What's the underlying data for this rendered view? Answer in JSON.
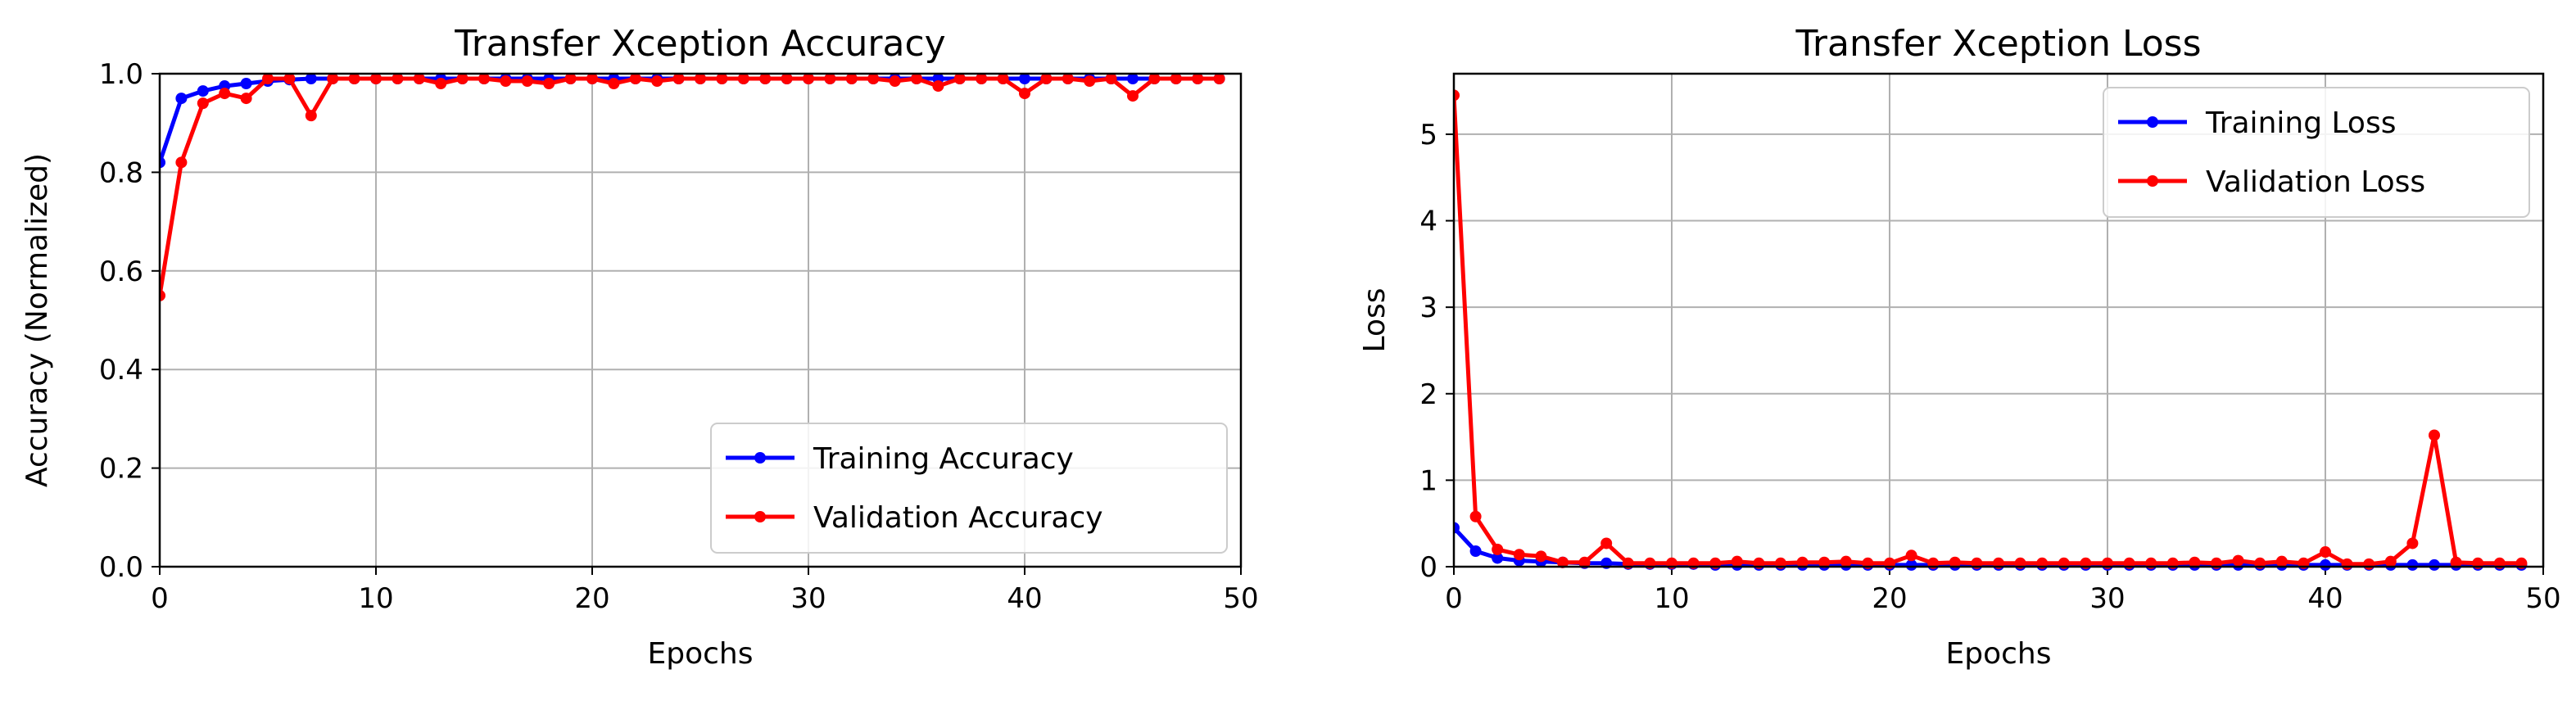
{
  "chart_data": [
    {
      "type": "line",
      "title": "Transfer Xception Accuracy",
      "xlabel": "Epochs",
      "ylabel": "Accuracy (Normalized)",
      "xlim": [
        0,
        50
      ],
      "ylim": [
        0,
        1.0
      ],
      "xticks": [
        "0",
        "10",
        "20",
        "30",
        "40",
        "50"
      ],
      "yticks": [
        "0.0",
        "0.2",
        "0.4",
        "0.6",
        "0.8",
        "1.0"
      ],
      "grid": true,
      "legend_position": "lower-right",
      "x": [
        0,
        1,
        2,
        3,
        4,
        5,
        6,
        7,
        8,
        9,
        10,
        11,
        12,
        13,
        14,
        15,
        16,
        17,
        18,
        19,
        20,
        21,
        22,
        23,
        24,
        25,
        26,
        27,
        28,
        29,
        30,
        31,
        32,
        33,
        34,
        35,
        36,
        37,
        38,
        39,
        40,
        41,
        42,
        43,
        44,
        45,
        46,
        47,
        48,
        49
      ],
      "series": [
        {
          "name": "Training Accuracy",
          "color": "#0000ff",
          "values": [
            0.82,
            0.95,
            0.965,
            0.975,
            0.98,
            0.985,
            0.988,
            0.99,
            0.99,
            0.99,
            0.99,
            0.99,
            0.99,
            0.99,
            0.99,
            0.99,
            0.99,
            0.99,
            0.99,
            0.99,
            0.99,
            0.99,
            0.99,
            0.99,
            0.99,
            0.99,
            0.99,
            0.99,
            0.99,
            0.99,
            0.99,
            0.99,
            0.99,
            0.99,
            0.99,
            0.99,
            0.99,
            0.99,
            0.99,
            0.99,
            0.99,
            0.99,
            0.99,
            0.99,
            0.99,
            0.99,
            0.99,
            0.99,
            0.99,
            0.99
          ]
        },
        {
          "name": "Validation Accuracy",
          "color": "#ff0000",
          "values": [
            0.55,
            0.82,
            0.94,
            0.96,
            0.95,
            0.99,
            0.99,
            0.915,
            0.99,
            0.99,
            0.99,
            0.99,
            0.99,
            0.98,
            0.99,
            0.99,
            0.985,
            0.985,
            0.98,
            0.99,
            0.99,
            0.98,
            0.99,
            0.985,
            0.99,
            0.99,
            0.99,
            0.99,
            0.99,
            0.99,
            0.99,
            0.99,
            0.99,
            0.99,
            0.985,
            0.99,
            0.975,
            0.99,
            0.99,
            0.99,
            0.96,
            0.99,
            0.99,
            0.985,
            0.99,
            0.955,
            0.99,
            0.99,
            0.99,
            0.99
          ]
        }
      ]
    },
    {
      "type": "line",
      "title": "Transfer Xception Loss",
      "xlabel": "Epochs",
      "ylabel": "Loss",
      "xlim": [
        0,
        50
      ],
      "ylim": [
        0,
        5.7
      ],
      "xticks": [
        "0",
        "10",
        "20",
        "30",
        "40",
        "50"
      ],
      "yticks": [
        "0",
        "1",
        "2",
        "3",
        "4",
        "5"
      ],
      "grid": true,
      "legend_position": "upper-right",
      "x": [
        0,
        1,
        2,
        3,
        4,
        5,
        6,
        7,
        8,
        9,
        10,
        11,
        12,
        13,
        14,
        15,
        16,
        17,
        18,
        19,
        20,
        21,
        22,
        23,
        24,
        25,
        26,
        27,
        28,
        29,
        30,
        31,
        32,
        33,
        34,
        35,
        36,
        37,
        38,
        39,
        40,
        41,
        42,
        43,
        44,
        45,
        46,
        47,
        48,
        49
      ],
      "series": [
        {
          "name": "Training Loss",
          "color": "#0000ff",
          "values": [
            0.45,
            0.18,
            0.1,
            0.07,
            0.06,
            0.05,
            0.04,
            0.04,
            0.03,
            0.03,
            0.03,
            0.03,
            0.02,
            0.02,
            0.02,
            0.02,
            0.02,
            0.02,
            0.02,
            0.02,
            0.02,
            0.02,
            0.02,
            0.02,
            0.02,
            0.02,
            0.02,
            0.02,
            0.02,
            0.02,
            0.02,
            0.02,
            0.02,
            0.02,
            0.02,
            0.02,
            0.02,
            0.02,
            0.02,
            0.02,
            0.02,
            0.02,
            0.02,
            0.02,
            0.02,
            0.02,
            0.02,
            0.02,
            0.02,
            0.02
          ]
        },
        {
          "name": "Validation Loss",
          "color": "#ff0000",
          "values": [
            5.45,
            0.58,
            0.2,
            0.14,
            0.12,
            0.05,
            0.05,
            0.27,
            0.04,
            0.04,
            0.04,
            0.04,
            0.04,
            0.06,
            0.04,
            0.04,
            0.05,
            0.05,
            0.06,
            0.04,
            0.04,
            0.13,
            0.04,
            0.05,
            0.04,
            0.04,
            0.04,
            0.04,
            0.04,
            0.04,
            0.04,
            0.04,
            0.04,
            0.04,
            0.05,
            0.04,
            0.07,
            0.04,
            0.06,
            0.04,
            0.17,
            0.03,
            0.03,
            0.06,
            0.27,
            1.52,
            0.05,
            0.04,
            0.04,
            0.04
          ]
        }
      ]
    }
  ]
}
